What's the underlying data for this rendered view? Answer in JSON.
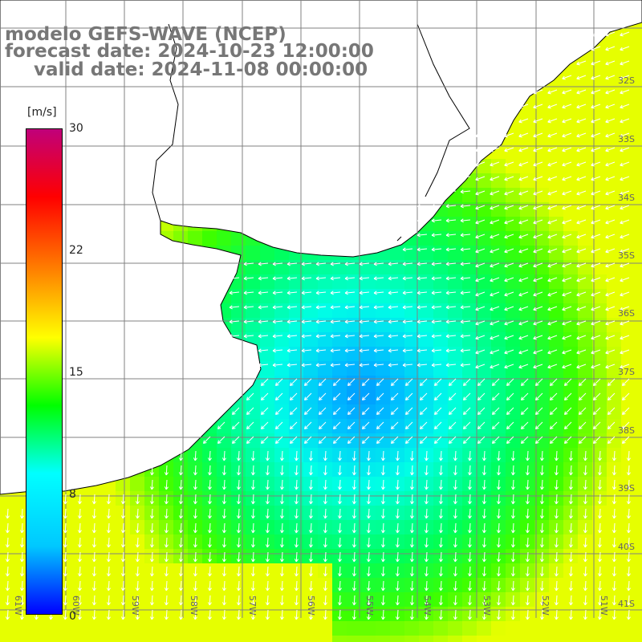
{
  "header": {
    "model_line": "modelo GEFS-WAVE (NCEP)",
    "forecast_line": "forecast date: 2024-10-23 12:00:00",
    "valid_line": "valid date: 2024-11-08 00:00:00"
  },
  "colorbar": {
    "unit": "[m/s]",
    "ticks": [
      "30",
      "22",
      "15",
      "8",
      "0"
    ],
    "colors": [
      "#0000ff",
      "#00c8ff",
      "#00ffff",
      "#00ff00",
      "#ffff00",
      "#ff8000",
      "#ff0000",
      "#c0007a"
    ]
  },
  "map": {
    "land_color": "#ffffff",
    "arrow_color": "#ffffff",
    "grid_color": "#808080",
    "lat_labels": [
      "32S",
      "33S",
      "34S",
      "35S",
      "36S",
      "37S",
      "38S",
      "39S",
      "40S",
      "41S"
    ],
    "lon_labels": [
      "61W",
      "60W",
      "59W",
      "58W",
      "57W",
      "56W",
      "55W",
      "54W",
      "53W",
      "52W",
      "51W"
    ]
  }
}
